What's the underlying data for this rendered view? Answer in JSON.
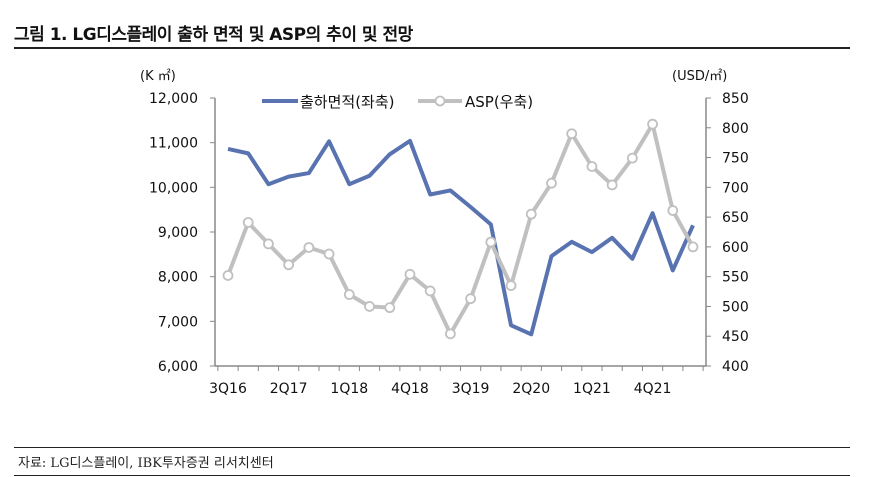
{
  "title": "그림 1. LG디스플레이 출하 면적 및 ASP의 추이 및 전망",
  "source": "자료: LG디스플레이, IBK투자증권 리서치센터",
  "chart_data": {
    "type": "line",
    "title": "",
    "left_axis": {
      "unit_label": "(K ㎡)",
      "ylim": [
        6000,
        12000
      ],
      "ticks": [
        6000,
        7000,
        8000,
        9000,
        10000,
        11000,
        12000
      ],
      "tick_labels": [
        "6,000",
        "7,000",
        "8,000",
        "9,000",
        "10,000",
        "11,000",
        "12,000"
      ]
    },
    "right_axis": {
      "unit_label": "(USD/㎡)",
      "ylim": [
        400,
        850
      ],
      "ticks": [
        400,
        450,
        500,
        550,
        600,
        650,
        700,
        750,
        800,
        850
      ],
      "tick_labels": [
        "400",
        "450",
        "500",
        "550",
        "600",
        "650",
        "700",
        "750",
        "800",
        "850"
      ]
    },
    "x": [
      "3Q16",
      "4Q16",
      "1Q17",
      "2Q17",
      "3Q17",
      "4Q17",
      "1Q18",
      "2Q18",
      "3Q18",
      "4Q18",
      "1Q19",
      "2Q19",
      "3Q19",
      "4Q19",
      "1Q20",
      "2Q20",
      "3Q20",
      "4Q20",
      "1Q21",
      "2Q21",
      "3Q21",
      "4Q21",
      "1Q22",
      "2Q22"
    ],
    "x_tick_labels": [
      "3Q16",
      "2Q17",
      "1Q18",
      "4Q18",
      "3Q19",
      "2Q20",
      "1Q21",
      "4Q21"
    ],
    "series": [
      {
        "name": "출하면적(좌축)",
        "axis": "left",
        "color": "#5873B0",
        "markers": false,
        "values": [
          10860,
          10760,
          10070,
          10240,
          10320,
          11030,
          10070,
          10260,
          10740,
          11040,
          9840,
          9930,
          9560,
          9170,
          6910,
          6710,
          8460,
          8780,
          8550,
          8870,
          8400,
          9420,
          8140,
          9150
        ]
      },
      {
        "name": "ASP(우축)",
        "axis": "right",
        "color": "#C0C0C0",
        "markers": true,
        "values": [
          552,
          641,
          605,
          570,
          599,
          588,
          520,
          500,
          498,
          554,
          526,
          454,
          513,
          608,
          535,
          655,
          707,
          790,
          735,
          704,
          749,
          806,
          661,
          600
        ]
      }
    ],
    "legend": "top",
    "grid": false
  }
}
